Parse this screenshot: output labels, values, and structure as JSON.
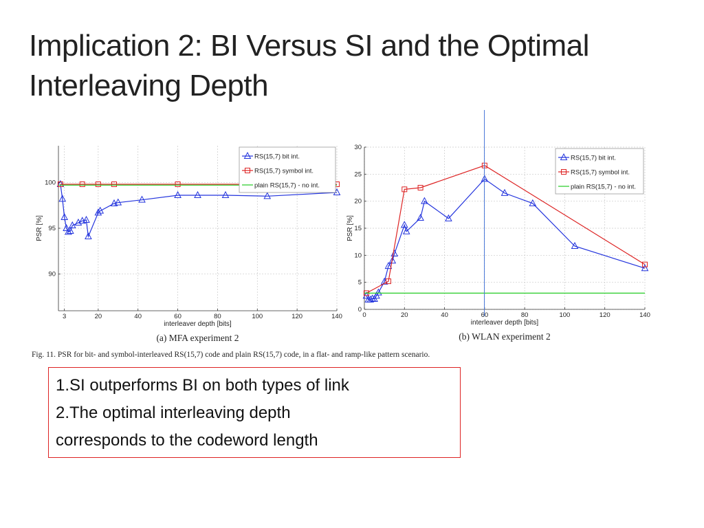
{
  "slide": {
    "title_line1": "Implication 2: BI Versus SI and the Optimal",
    "title_line2": "Interleaving  Depth",
    "figure_caption": "Fig. 11.    PSR for bit- and symbol-interleaved RS(15,7) code and plain RS(15,7) code, in a flat- and ramp-like pattern scenario.",
    "notes": [
      " 1.SI outperforms BI on both types of link",
      " 2.The optimal interleaving depth",
      "corresponds to the codeword length"
    ]
  },
  "colors": {
    "bit": "#2233dd",
    "symbol": "#dd2222",
    "plain": "#22cc22",
    "box_border": "#dd2222"
  },
  "chart_data": [
    {
      "type": "line",
      "caption": "(a) MFA experiment 2",
      "xlabel": "interleaver depth [bits]",
      "ylabel": "PSR [%]",
      "xlim": [
        0,
        140
      ],
      "ylim": [
        86,
        104
      ],
      "xticks": [
        3,
        20,
        40,
        60,
        80,
        100,
        120,
        140
      ],
      "xtick_labels": [
        "3",
        "20",
        "40",
        "60",
        "80",
        "100",
        "120",
        "140"
      ],
      "yticks": [
        90,
        95,
        100
      ],
      "ytick_labels": [
        "90",
        "95",
        "100"
      ],
      "grid": true,
      "legend_position": "top-right",
      "series": [
        {
          "name": "RS(15,7) bit int.",
          "marker": "triangle",
          "color": "#2233dd",
          "x": [
            1,
            2,
            3,
            4,
            5,
            6,
            7,
            10,
            12,
            14,
            15,
            20,
            21,
            28,
            30,
            42,
            60,
            70,
            84,
            105,
            140
          ],
          "y": [
            99.8,
            98.2,
            96.2,
            95.0,
            94.6,
            94.7,
            95.3,
            95.6,
            95.8,
            95.9,
            94.1,
            96.7,
            96.9,
            97.7,
            97.8,
            98.1,
            98.6,
            98.6,
            98.6,
            98.5,
            98.9
          ]
        },
        {
          "name": "RS(15,7) symbol int.",
          "marker": "square",
          "color": "#dd2222",
          "x": [
            1,
            12,
            20,
            28,
            60,
            140
          ],
          "y": [
            99.8,
            99.8,
            99.8,
            99.8,
            99.8,
            99.8
          ]
        },
        {
          "name": "plain RS(15,7) - no int.",
          "marker": "none",
          "color": "#22cc22",
          "x": [
            0,
            140
          ],
          "y": [
            99.7,
            99.7
          ]
        }
      ]
    },
    {
      "type": "line",
      "caption": "(b) WLAN experiment 2",
      "xlabel": "interleaver depth [bits]",
      "ylabel": "PSR [%]",
      "xlim": [
        0,
        140
      ],
      "ylim": [
        0,
        30
      ],
      "xticks": [
        0,
        20,
        40,
        60,
        80,
        100,
        120,
        140
      ],
      "xtick_labels": [
        "0",
        "20",
        "40",
        "60",
        "80",
        "100",
        "120",
        "140"
      ],
      "yticks": [
        0,
        5,
        10,
        15,
        20,
        25,
        30
      ],
      "ytick_labels": [
        "0",
        "5",
        "10",
        "15",
        "20",
        "25",
        "30"
      ],
      "grid": true,
      "legend_position": "top-right",
      "series": [
        {
          "name": "RS(15,7) bit int.",
          "marker": "triangle",
          "color": "#2233dd",
          "x": [
            1,
            2,
            3,
            4,
            5,
            6,
            7,
            10,
            12,
            14,
            15,
            20,
            21,
            28,
            30,
            42,
            60,
            70,
            84,
            105,
            140
          ],
          "y": [
            2.5,
            1.8,
            1.8,
            2.0,
            1.9,
            2.5,
            3.1,
            5.1,
            8.0,
            9.0,
            10.3,
            15.6,
            14.4,
            16.9,
            20.0,
            16.8,
            24.1,
            21.5,
            19.6,
            11.7,
            7.6
          ]
        },
        {
          "name": "RS(15,7) symbol int.",
          "marker": "square",
          "color": "#dd2222",
          "x": [
            1,
            12,
            20,
            28,
            60,
            140
          ],
          "y": [
            3.0,
            5.2,
            22.2,
            22.5,
            26.6,
            8.3
          ]
        },
        {
          "name": "plain RS(15,7) - no int.",
          "marker": "none",
          "color": "#22cc22",
          "x": [
            0,
            140
          ],
          "y": [
            3.0,
            3.0
          ]
        }
      ]
    }
  ]
}
